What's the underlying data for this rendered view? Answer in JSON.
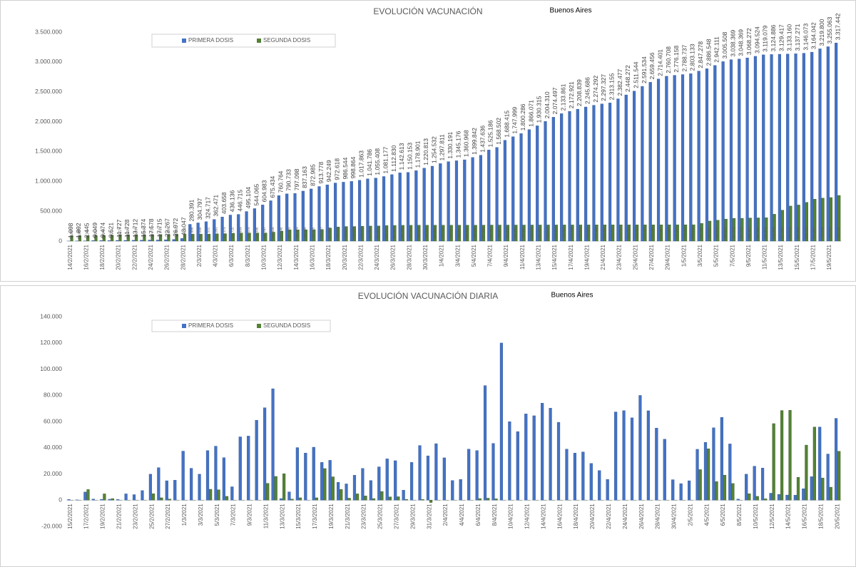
{
  "chart_data": [
    {
      "type": "bar",
      "title": "EVOLUCIÓN VACUNACIÓN",
      "subtitle": "Buenos Aires",
      "grid": false,
      "legend": "top-left",
      "categories": [
        "14/2/2021",
        null,
        "16/2/2021",
        null,
        "18/2/2021",
        null,
        "20/2/2021",
        null,
        "22/2/2021",
        null,
        "24/2/2021",
        null,
        "26/2/2021",
        null,
        "28/2/2021",
        null,
        "2/3/2021",
        null,
        "4/3/2021",
        null,
        "6/3/2021",
        null,
        "8/3/2021",
        null,
        "10/3/2021",
        null,
        "12/3/2021",
        null,
        "14/3/2021",
        null,
        "16/3/2021",
        null,
        "18/3/2021",
        null,
        "20/3/2021",
        null,
        "22/3/2021",
        null,
        "24/3/2021",
        null,
        "26/3/2021",
        null,
        "28/3/2021",
        null,
        "30/3/2021",
        null,
        "1/4/2021",
        null,
        "3/4/2021",
        null,
        "5/4/2021",
        null,
        "7/4/2021",
        null,
        "9/4/2021",
        null,
        "11/4/2021",
        null,
        "13/4/2021",
        null,
        "15/4/2021",
        null,
        "17/4/2021",
        null,
        "19/4/2021",
        null,
        "21/4/2021",
        null,
        "23/4/2021",
        null,
        "25/4/2021",
        null,
        "27/4/2021",
        null,
        "29/4/2021",
        null,
        "1/5/2021",
        null,
        "3/5/2021",
        null,
        "5/5/2021",
        null,
        "7/5/2021",
        null,
        "9/5/2021",
        null,
        "11/5/2021",
        null,
        "13/5/2021",
        null,
        "15/5/2021",
        null,
        "17/5/2021",
        null,
        "19/5/2021",
        null
      ],
      "ylim": [
        0,
        3500000
      ],
      "yticks": [
        0,
        {
          "value": 500000,
          "label": "500.000"
        },
        {
          "value": 1000000,
          "label": "1.000.000"
        },
        {
          "value": 1500000,
          "label": "1.500.000"
        },
        {
          "value": 2000000,
          "label": "2.000.000"
        },
        {
          "value": 2500000,
          "label": "2.500.000"
        },
        {
          "value": 3000000,
          "label": "3.000.000"
        },
        {
          "value": 3500000,
          "label": "3.500.000"
        }
      ],
      "series": [
        {
          "name": "PRIMERA DOSIS",
          "color": "#4472c4",
          "values": [
            1098,
            1892,
            2445,
            9049,
            9474,
            9521,
            11727,
            11728,
            13712,
            15374,
            17578,
            17715,
            22267,
            26972,
            43047,
            280391,
            304797,
            324717,
            362471,
            403658,
            436136,
            446715,
            495104,
            544065,
            604983,
            675434,
            760764,
            790733,
            797098,
            837163,
            872985,
            913778,
            942249,
            972618,
            986544,
            998864,
            1017863,
            1041786,
            1055408,
            1081177,
            1112830,
            1142613,
            1150153,
            1178901,
            1220813,
            1254532,
            1297811,
            1330191,
            1345176,
            1360968,
            1399842,
            1437636,
            1525186,
            1568502,
            1688415,
            1747999,
            1800286,
            1866071,
            1930315,
            2004310,
            2074497,
            2133861,
            2172921,
            2208839,
            2245686,
            2274292,
            2297327,
            2313155,
            2382477,
            2448272,
            2511544,
            2591534,
            2659456,
            2714401,
            2760708,
            2776158,
            2788737,
            2803133,
            2847278,
            2886548,
            2942111,
            3005508,
            3038369,
            3048369,
            3068272,
            3094524,
            3119079,
            3124886,
            3129417,
            3133160,
            3137271,
            3146073,
            3164042,
            3219800,
            3255063,
            3317442
          ],
          "value_labels": [
            "1.098",
            "1.892",
            "2.445",
            "9.049",
            "9.474",
            "9.521",
            "11.727",
            "11.728",
            "13.712",
            "15.374",
            "17.578",
            "17.715",
            "22.267",
            "26.972",
            "43.047",
            "280.391",
            "304.797",
            "324.717",
            "362.471",
            "403.658",
            "436.136",
            "446.715",
            "495.104",
            "544.065",
            "604.983",
            "675.434",
            "760.764",
            "790.733",
            "797.098",
            "837.163",
            "872.985",
            "913.778",
            "942.249",
            "972.618",
            "986.544",
            "998.864",
            "1.017.863",
            "1.041.786",
            "1.055.408",
            "1.081.177",
            "1.112.830",
            "1.142.613",
            "1.150.153",
            "1.178.901",
            "1.220.813",
            "1.254.532",
            "1.297.811",
            "1.330.191",
            "1.345.176",
            "1.360.968",
            "1.399.842",
            "1.437.636",
            "1.525.186",
            "1.568.502",
            "1.688.415",
            "1.747.999",
            "1.800.286",
            "1.866.071",
            "1.930.315",
            "2.004.310",
            "2.074.497",
            "2.133.861",
            "2.172.921",
            "2.208.839",
            "2.245.686",
            "2.274.292",
            "2.297.327",
            "2.313.155",
            "2.382.477",
            "2.448.272",
            "2.511.544",
            "2.591.534",
            "2.659.456",
            "2.714.401",
            "2.760.708",
            "2.776.158",
            "2.788.737",
            "2.803.133",
            "2.847.278",
            "2.886.548",
            "2.942.111",
            "3.005.508",
            "3.038.369",
            "3.048.369",
            "3.068.272",
            "3.094.524",
            "3.119.079",
            "3.124.886",
            "3.129.417",
            "3.133.160",
            "3.137.271",
            "3.146.073",
            "3.164.042",
            "3.219.800",
            "3.255.063",
            "3.317.442"
          ]
        },
        {
          "name": "SEGUNDA DOSIS",
          "color": "#548235",
          "values": [
            90832,
            90966,
            91711,
            91853,
            95538,
            99321,
            104776,
            105393,
            106446,
            106644,
            106774,
            107035,
            111897,
            113801,
            114878,
            114886,
            115230,
            115531,
            121261,
            124173,
            130725,
            134859,
            135070,
            135396,
            135747,
            148928,
            167146,
            187420,
            188379,
            189655,
            191115,
            193427,
            217470,
            235422,
            243638,
            244029,
            248415,
            251801,
            253851,
            258795,
            261920,
            264258,
            264260,
            265072,
            265450,
            265860,
            266216,
            266331,
            266392,
            266432,
            266466,
            267399,
            268401,
            268587,
            268638,
            268742,
            268868,
            269074,
            269432,
            269841,
            270187,
            270322,
            270339,
            270530,
            270829,
            271188,
            271422,
            271721,
            271729,
            271751,
            271913,
            272130,
            272253,
            272387,
            272863,
            272897,
            273062,
            273218,
            296185,
            335092,
            349071,
            368432,
            381379,
            381379,
            386467,
            388482,
            390975,
            449539,
            517889,
            586618,
            604088,
            648150,
            701837,
            718845,
            728965,
            764296
          ],
          "value_labels": [
            "90.832",
            "90.966",
            "91.711",
            "91.853",
            "95.538",
            "99.321",
            "104.776",
            "105.393",
            "106.446",
            "106.644",
            "106.774",
            "107.035",
            "111.897",
            "113.801",
            "114.878",
            "114.886",
            "115.230",
            "115.531",
            "121.261",
            "124.173",
            "130.725",
            "134.859",
            "135.070",
            "135.396",
            "135.747",
            "148.928",
            "167.146",
            "187.420",
            "188.379",
            "189.655",
            "191.115",
            "193.427",
            "217.470",
            "235.422",
            "243.638",
            "244.029",
            "248.415",
            "251.801",
            "253.851",
            "258.795",
            "261.920",
            "264.258",
            "264.260",
            "265.072",
            "265.450",
            "265.860",
            "266.216",
            "266.331",
            "266.392",
            "266.432",
            "266.466",
            "267.399",
            "268.401",
            "268.587",
            "268.638",
            "268.742",
            "268.868",
            "269.074",
            "269.432",
            "269.841",
            "270.187",
            "270.322",
            "270.339",
            "270.530",
            "270.829",
            "271.188",
            "271.422",
            "271.721",
            "271.729",
            "271.751",
            "271.913",
            "272.130",
            "272.253",
            "272.387",
            "272.863",
            "272.897",
            "273.062",
            "273.218",
            "296.185",
            "335.092",
            "349.071",
            "368.432",
            "381.379",
            "381.379",
            "386.467",
            "388.482",
            "390.975",
            "449.539",
            "517.889",
            "586.618",
            "604.088",
            "648.150",
            "701.837",
            "718.845",
            "728.965",
            "764.296"
          ]
        }
      ]
    },
    {
      "type": "bar",
      "title": "EVOLUCIÓN VACUNACIÓN DIARIA",
      "subtitle": "Buenos Aires",
      "grid": false,
      "legend": "top-left",
      "categories": [
        "15/2/2021",
        null,
        "17/2/2021",
        null,
        "19/2/2021",
        null,
        "21/2/2021",
        null,
        "23/2/2021",
        null,
        "25/2/2021",
        null,
        "27/2/2021",
        null,
        "1/3/2021",
        null,
        "3/3/2021",
        null,
        "5/3/2021",
        null,
        "7/3/2021",
        null,
        "9/3/2021",
        null,
        "11/3/2021",
        null,
        "13/3/2021",
        null,
        "15/3/2021",
        null,
        "17/3/2021",
        null,
        "19/3/2021",
        null,
        "21/3/2021",
        null,
        "23/3/2021",
        null,
        "25/3/2021",
        null,
        "27/3/2021",
        null,
        "29/3/2021",
        null,
        "31/3/2021",
        null,
        "2/4/2021",
        null,
        "4/4/2021",
        null,
        "6/4/2021",
        null,
        "8/4/2021",
        null,
        "10/4/2021",
        null,
        "12/4/2021",
        null,
        "14/4/2021",
        null,
        "16/4/2021",
        null,
        "18/4/2021",
        null,
        "20/4/2021",
        null,
        "22/4/2021",
        null,
        "24/4/2021",
        null,
        "26/4/2021",
        null,
        "28/4/2021",
        null,
        "30/4/2021",
        null,
        "2/5/2021",
        null,
        "4/5/2021",
        null,
        "6/5/2021",
        null,
        "8/5/2021",
        null,
        "10/5/2021",
        null,
        "12/5/2021",
        null,
        "14/5/2021",
        null,
        "16/5/2021",
        null,
        "18/5/2021",
        null,
        "20/5/2021"
      ],
      "ylim": [
        -20000,
        140000
      ],
      "yticks": [
        {
          "value": -20000,
          "label": "-20.000"
        },
        0,
        {
          "value": 20000,
          "label": "20.000"
        },
        {
          "value": 40000,
          "label": "40.000"
        },
        {
          "value": 60000,
          "label": "60.000"
        },
        {
          "value": 80000,
          "label": "80.000"
        },
        {
          "value": 100000,
          "label": "100.000"
        },
        {
          "value": 120000,
          "label": "120.000"
        },
        {
          "value": 140000,
          "label": "140.000"
        }
      ],
      "series": [
        {
          "name": "PRIMERA DOSIS",
          "color": "#4472c4",
          "values": [
            500,
            200,
            6200,
            800,
            600,
            700,
            500,
            4800,
            4200,
            7300,
            19800,
            24800,
            14800,
            15200,
            37400,
            24300,
            19800,
            37800,
            41200,
            32400,
            10200,
            48300,
            48900,
            61000,
            70500,
            85000,
            1200,
            6300,
            40100,
            35900,
            40400,
            28800,
            30400,
            13600,
            12400,
            19000,
            24200,
            15000,
            25400,
            31500,
            30100,
            7600,
            28800,
            41700,
            33800,
            43100,
            32300,
            15000,
            15800,
            38900,
            37800,
            87400,
            43300,
            119900,
            59900,
            52300,
            65800,
            64400,
            74000,
            70200,
            59400,
            38900,
            35900,
            36800,
            28000,
            22600,
            15800,
            67300,
            68300,
            62800,
            79900,
            68200,
            55000,
            46500,
            15600,
            12600,
            14800,
            38800,
            44100,
            55200,
            63200,
            42900,
            800,
            19800,
            25900,
            24500,
            5300,
            4400,
            3900,
            3800,
            8700,
            17900,
            55800,
            35200,
            62400
          ]
        },
        {
          "name": "SEGUNDA DOSIS",
          "color": "#548235",
          "values": [
            0,
            0,
            8100,
            0,
            4800,
            1200,
            0,
            0,
            0,
            0,
            4900,
            1800,
            800,
            0,
            0,
            0,
            0,
            8300,
            7900,
            2900,
            0,
            0,
            0,
            0,
            12800,
            18100,
            20200,
            800,
            1800,
            0,
            1800,
            24100,
            17800,
            8200,
            1500,
            4800,
            3200,
            1200,
            6600,
            2500,
            2600,
            600,
            0,
            500,
            -1800,
            0,
            0,
            0,
            0,
            0,
            1200,
            1500,
            1000,
            0,
            0,
            0,
            0,
            0,
            0,
            0,
            0,
            0,
            0,
            0,
            0,
            0,
            0,
            0,
            0,
            0,
            0,
            0,
            0,
            0,
            0,
            0,
            0,
            23300,
            39200,
            14100,
            19100,
            12700,
            0,
            4900,
            2900,
            1000,
            58400,
            68400,
            68600,
            17400,
            42000,
            55800,
            16900,
            9900,
            37300
          ]
        }
      ]
    }
  ]
}
